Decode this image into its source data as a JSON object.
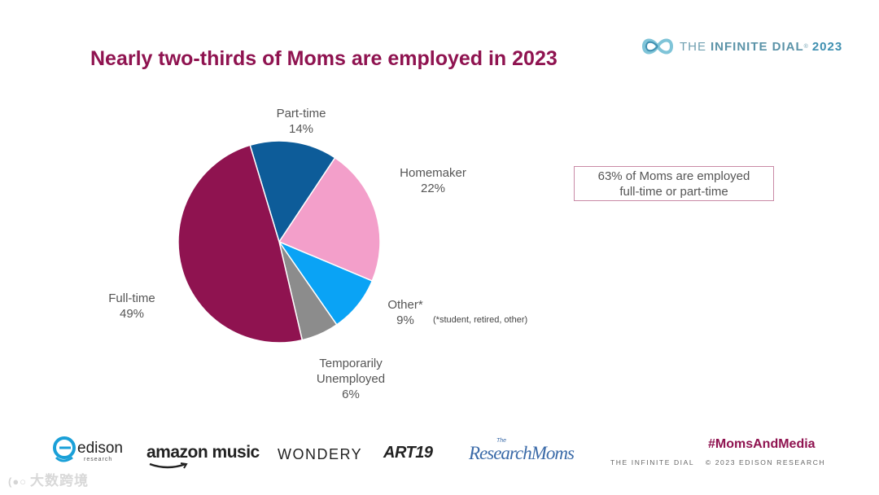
{
  "title": "Nearly two-thirds of Moms are employed in 2023",
  "brand": {
    "prefix": "THE",
    "name": "INFINITE DIAL",
    "mark": "®",
    "year": "2023"
  },
  "chart_data": {
    "type": "pie",
    "slices": [
      {
        "label": "Part-time",
        "value": 14,
        "display": "14%",
        "color": "#0d5c99"
      },
      {
        "label": "Homemaker",
        "value": 22,
        "display": "22%",
        "color": "#f39fca"
      },
      {
        "label": "Other*",
        "value": 9,
        "display": "9%",
        "color": "#0aa3f5"
      },
      {
        "label": "Temporarily Unemployed",
        "value": 6,
        "display": "6%",
        "color": "#8c8c8c"
      },
      {
        "label": "Full-time",
        "value": 49,
        "display": "49%",
        "color": "#8f1350"
      }
    ],
    "note": "(*student, retired, other)"
  },
  "labels": {
    "part_time": {
      "name": "Part-time",
      "pct": "14%"
    },
    "homemaker": {
      "name": "Homemaker",
      "pct": "22%"
    },
    "other": {
      "name": "Other*",
      "pct": "9%"
    },
    "temp_unemployed": {
      "name1": "Temporarily",
      "name2": "Unemployed",
      "pct": "6%"
    },
    "full_time": {
      "name": "Full-time",
      "pct": "49%"
    }
  },
  "callout": {
    "line1": "63% of Moms are employed",
    "line2": "full-time or part-time"
  },
  "sponsors": {
    "edison": "edison",
    "edison_sub": "research",
    "amazon": "amazon music",
    "wondery": "WONDERY",
    "art19": "ART19",
    "research_moms": "ResearchMoms",
    "research_moms_the": "The"
  },
  "hashtag": "#MomsAndMedia",
  "footer": {
    "left": "THE INFINITE DIAL",
    "right": "© 2023 EDISON RESEARCH"
  },
  "watermark": "大数跨境",
  "colors": {
    "accent": "#8f1350",
    "brand_blue": "#3e8fb0"
  }
}
